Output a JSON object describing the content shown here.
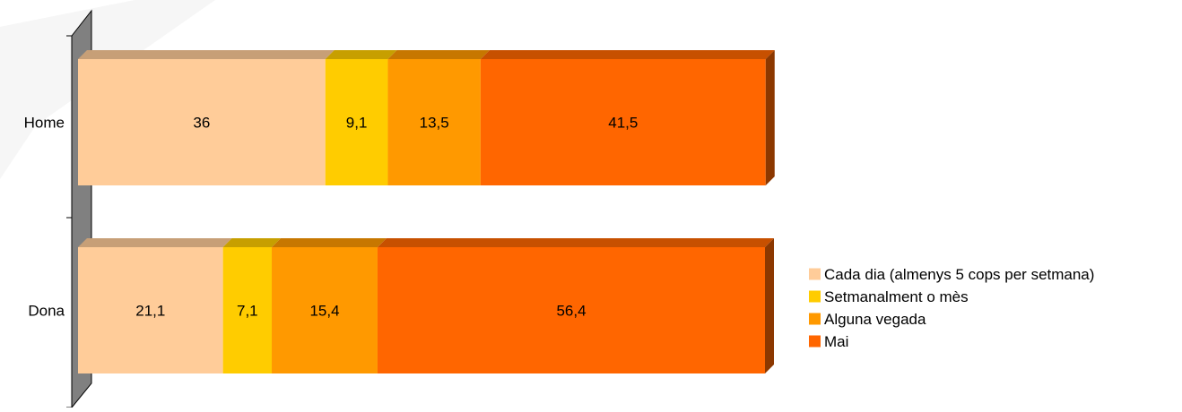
{
  "chart_data": {
    "type": "bar",
    "orientation": "horizontal",
    "stacked": true,
    "three_d": true,
    "categories": [
      "Home",
      "Dona"
    ],
    "series": [
      {
        "name": "Cada dia (almenys 5 cops per setmana)",
        "values": [
          36,
          21.1
        ],
        "labels": [
          "36",
          "21,1"
        ],
        "color": "#FFCC99"
      },
      {
        "name": "Setmanalment o mès",
        "values": [
          9.1,
          7.1
        ],
        "labels": [
          "9,1",
          "7,1"
        ],
        "color": "#FFCC00"
      },
      {
        "name": "Alguna vegada",
        "values": [
          13.5,
          15.4
        ],
        "labels": [
          "13,5",
          "15,4"
        ],
        "color": "#FF9900"
      },
      {
        "name": "Mai",
        "values": [
          41.5,
          56.4
        ],
        "labels": [
          "41,5",
          "56,4"
        ],
        "color": "#FF6600"
      }
    ],
    "xlim": [
      0,
      100
    ],
    "grid": false,
    "legend_position": "right",
    "wall_color": "#808080"
  }
}
